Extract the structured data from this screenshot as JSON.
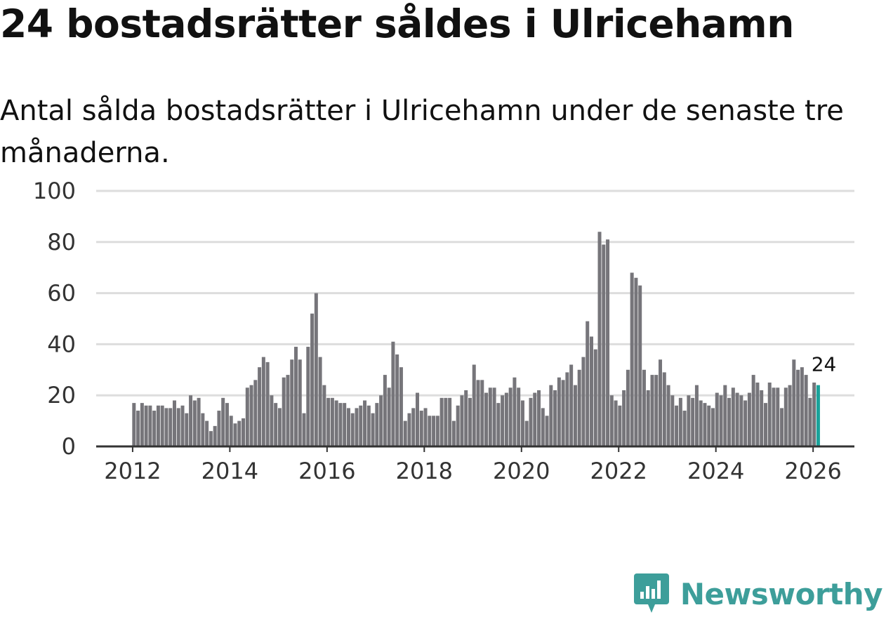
{
  "title": "24 bostadsrätter såldes i Ulricehamn",
  "subtitle": "Antal sålda bostadsrätter i Ulricehamn under de senaste tre månaderna.",
  "brand": {
    "name": "Newsworthy",
    "color": "#3d9e9a"
  },
  "colors": {
    "bar": "#76757a",
    "highlight": "#1aa39b",
    "grid": "#dddddd",
    "axis": "#333333"
  },
  "chart_data": {
    "type": "bar",
    "title": "24 bostadsrätter såldes i Ulricehamn",
    "xlabel": "",
    "ylabel": "",
    "x_start": 2012.0,
    "x_step": 0.0833,
    "xlim": [
      2011.25,
      2026.85
    ],
    "ylim": [
      0,
      100
    ],
    "yticks": [
      0,
      20,
      40,
      60,
      80,
      100
    ],
    "xticks": [
      2012,
      2014,
      2016,
      2018,
      2020,
      2022,
      2024,
      2026
    ],
    "grid": true,
    "highlight_last": true,
    "last_label": "24",
    "values": [
      17,
      14,
      17,
      16,
      16,
      14,
      16,
      16,
      15,
      15,
      18,
      15,
      16,
      13,
      20,
      18,
      19,
      13,
      10,
      6,
      8,
      14,
      19,
      17,
      12,
      9,
      10,
      11,
      23,
      24,
      26,
      31,
      35,
      33,
      20,
      17,
      15,
      27,
      28,
      34,
      39,
      34,
      13,
      39,
      52,
      60,
      35,
      24,
      19,
      19,
      18,
      17,
      17,
      15,
      13,
      15,
      16,
      18,
      16,
      13,
      17,
      20,
      28,
      23,
      41,
      36,
      31,
      10,
      13,
      15,
      21,
      14,
      15,
      12,
      12,
      12,
      19,
      19,
      19,
      10,
      16,
      20,
      22,
      19,
      32,
      26,
      26,
      21,
      23,
      23,
      17,
      20,
      21,
      23,
      27,
      23,
      18,
      10,
      19,
      21,
      22,
      15,
      12,
      24,
      22,
      27,
      26,
      29,
      32,
      24,
      30,
      35,
      49,
      43,
      38,
      84,
      79,
      81,
      20,
      18,
      16,
      22,
      30,
      68,
      66,
      63,
      30,
      22,
      28,
      28,
      34,
      29,
      24,
      20,
      16,
      19,
      14,
      20,
      19,
      24,
      18,
      17,
      16,
      15,
      21,
      20,
      24,
      19,
      23,
      21,
      20,
      18,
      21,
      28,
      25,
      22,
      17,
      25,
      23,
      23,
      15,
      23,
      24,
      34,
      30,
      31,
      28,
      19,
      25,
      24
    ]
  }
}
